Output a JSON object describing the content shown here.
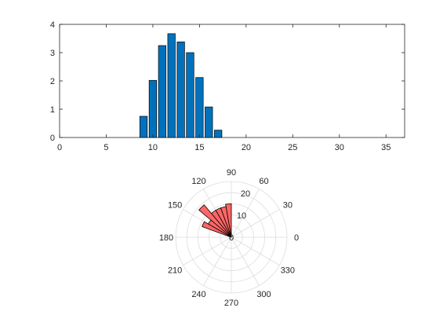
{
  "colors": {
    "background": "#ffffff",
    "bar_fill": "#0072bd",
    "bar_stroke": "#000000",
    "polar_fill": "#ff6666",
    "polar_stroke": "#000000",
    "axis": "#262626",
    "polar_grid": "#dddddd"
  },
  "chart_data": [
    {
      "type": "bar",
      "title": "",
      "xlabel": "",
      "ylabel": "",
      "xlim": [
        0,
        37
      ],
      "ylim": [
        0,
        4
      ],
      "xticks": [
        0,
        5,
        10,
        15,
        20,
        25,
        30,
        35
      ],
      "yticks": [
        0,
        1,
        2,
        3,
        4
      ],
      "bar_width": 0.8,
      "x": [
        9,
        10,
        11,
        12,
        13,
        14,
        15,
        16,
        17
      ],
      "values": [
        0.75,
        2.02,
        3.25,
        3.67,
        3.38,
        3.0,
        2.12,
        1.08,
        0.26
      ],
      "grid": false
    },
    {
      "type": "polar_histogram",
      "title": "",
      "theta_ticks_deg": [
        0,
        30,
        60,
        90,
        120,
        150,
        180,
        210,
        240,
        270,
        300,
        330
      ],
      "r_ticks": [
        10,
        20
      ],
      "r_tick_labels_shown": [
        10,
        20
      ],
      "rlim": [
        0,
        25
      ],
      "bin_width_deg": 10,
      "bins": [
        {
          "theta_start": 90,
          "theta_end": 100,
          "r": 15
        },
        {
          "theta_start": 100,
          "theta_end": 110,
          "r": 14
        },
        {
          "theta_start": 110,
          "theta_end": 120,
          "r": 14
        },
        {
          "theta_start": 120,
          "theta_end": 130,
          "r": 14
        },
        {
          "theta_start": 130,
          "theta_end": 140,
          "r": 19
        },
        {
          "theta_start": 140,
          "theta_end": 150,
          "r": 12
        },
        {
          "theta_start": 150,
          "theta_end": 160,
          "r": 14
        }
      ],
      "grid": true
    }
  ]
}
